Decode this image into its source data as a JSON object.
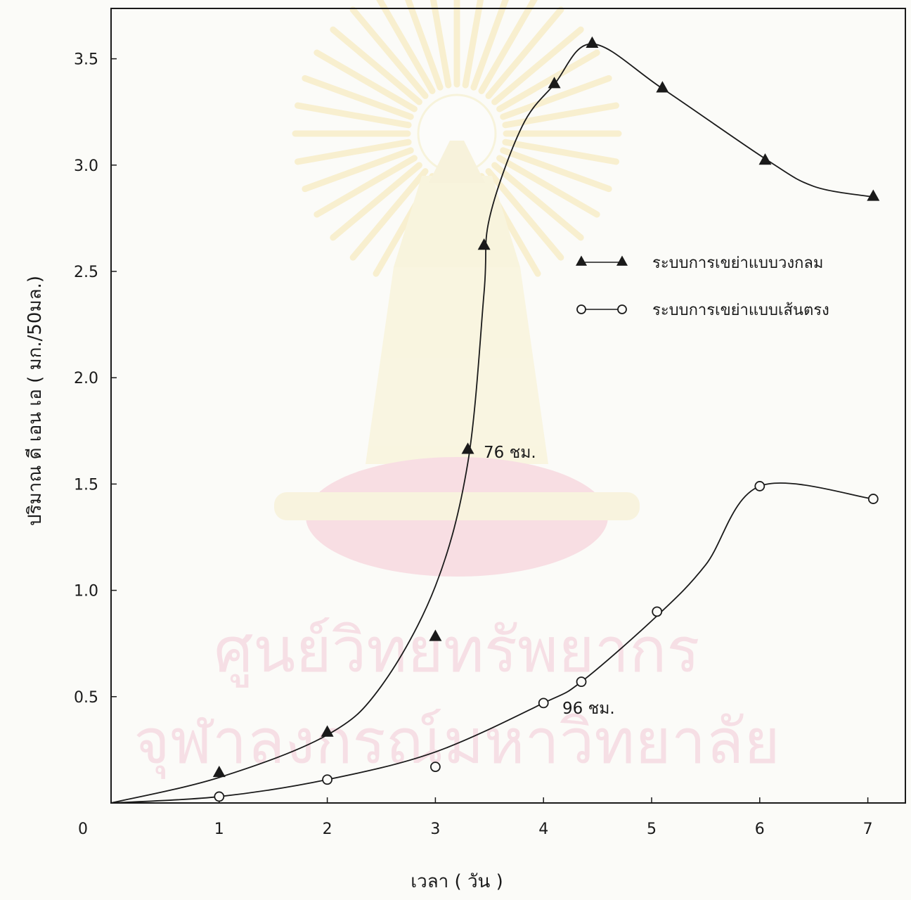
{
  "chart_data": {
    "type": "line",
    "title": "",
    "xlabel": "เวลา ( วัน )",
    "ylabel": "ปริมาณ ดี เอน เอ ( มก./50มล.)",
    "xlim": [
      0,
      7.3
    ],
    "ylim": [
      0,
      3.7
    ],
    "x_ticks": [
      {
        "value": 0,
        "label": "0"
      },
      {
        "value": 1,
        "label": "1"
      },
      {
        "value": 2,
        "label": "2"
      },
      {
        "value": 3,
        "label": "3"
      },
      {
        "value": 4,
        "label": "4"
      },
      {
        "value": 5,
        "label": "5"
      },
      {
        "value": 6,
        "label": "6"
      },
      {
        "value": 7,
        "label": "7"
      }
    ],
    "y_ticks": [
      {
        "value": 0.5,
        "label": "0.5"
      },
      {
        "value": 1.0,
        "label": "1.0"
      },
      {
        "value": 1.5,
        "label": "1.5"
      },
      {
        "value": 2.0,
        "label": "2.0"
      },
      {
        "value": 2.5,
        "label": "2.5"
      },
      {
        "value": 3.0,
        "label": "3.0"
      },
      {
        "value": 3.5,
        "label": "3.5"
      }
    ],
    "grid": false,
    "legend_position": "right",
    "series": [
      {
        "name": "ระบบการเขย่าแบบวงกลม",
        "marker": "triangle",
        "color": "#1a1a1a",
        "points": [
          [
            1.0,
            0.14
          ],
          [
            2.0,
            0.33
          ],
          [
            3.0,
            0.78
          ],
          [
            3.3,
            1.66
          ],
          [
            3.45,
            2.62
          ],
          [
            4.1,
            3.38
          ],
          [
            4.45,
            3.57
          ],
          [
            5.1,
            3.36
          ],
          [
            6.05,
            3.02
          ],
          [
            7.05,
            2.85
          ]
        ],
        "curve": [
          [
            0,
            0
          ],
          [
            1,
            0.12
          ],
          [
            2,
            0.32
          ],
          [
            2.5,
            0.55
          ],
          [
            3,
            1.02
          ],
          [
            3.3,
            1.6
          ],
          [
            3.45,
            2.4
          ],
          [
            3.5,
            2.75
          ],
          [
            3.8,
            3.18
          ],
          [
            4.1,
            3.38
          ],
          [
            4.45,
            3.57
          ],
          [
            5.1,
            3.36
          ],
          [
            6.05,
            3.03
          ],
          [
            6.5,
            2.9
          ],
          [
            7.05,
            2.85
          ]
        ]
      },
      {
        "name": "ระบบการเขย่าแบบเส้นตรง",
        "marker": "circle",
        "color": "#1a1a1a",
        "points": [
          [
            1.0,
            0.03
          ],
          [
            2.0,
            0.11
          ],
          [
            3.0,
            0.17
          ],
          [
            4.0,
            0.47
          ],
          [
            4.35,
            0.57
          ],
          [
            5.05,
            0.9
          ],
          [
            6.0,
            1.49
          ],
          [
            7.05,
            1.43
          ]
        ],
        "curve": [
          [
            0,
            0
          ],
          [
            1,
            0.03
          ],
          [
            2,
            0.11
          ],
          [
            3,
            0.24
          ],
          [
            4,
            0.47
          ],
          [
            4.35,
            0.57
          ],
          [
            5.05,
            0.88
          ],
          [
            5.5,
            1.12
          ],
          [
            6.0,
            1.49
          ],
          [
            7.05,
            1.43
          ]
        ]
      }
    ],
    "annotations": [
      {
        "text": "76 ชม.",
        "x": 3.35,
        "y": 1.65
      },
      {
        "text": "96 ชม.",
        "x": 4.1,
        "y": 0.45
      }
    ],
    "watermark": "ศูนย์วิทยทรัพยากร จุฬาลงกรณ์มหาวิทยาลัย"
  }
}
